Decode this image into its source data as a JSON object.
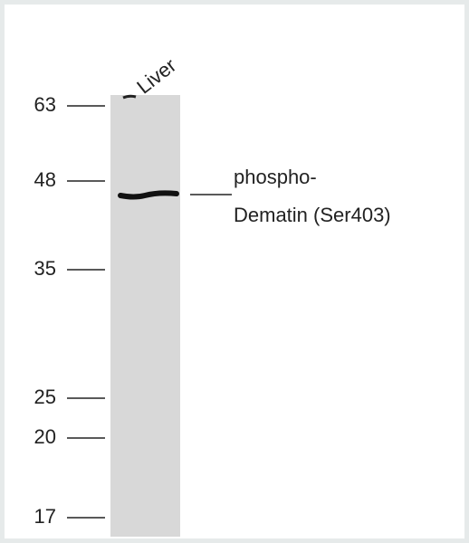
{
  "lane_label": "Liver",
  "markers": [
    63,
    48,
    35,
    25,
    20,
    17
  ],
  "band_label": [
    "phospho-",
    "Dematin (Ser403)"
  ]
}
